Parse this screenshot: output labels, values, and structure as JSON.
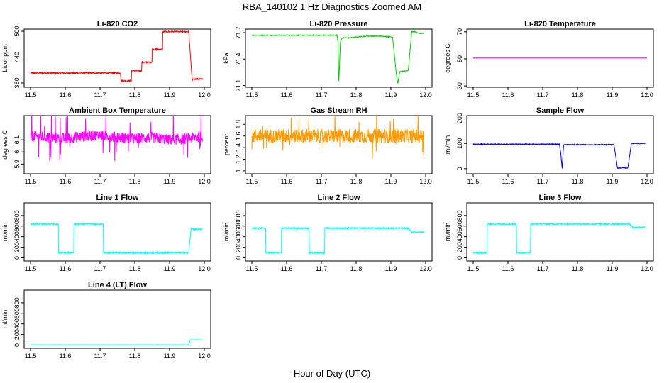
{
  "figure": {
    "title": "RBA_140102  1 Hz Diagnostics Zoomed AM",
    "xlabel": "Hour of Day (UTC)"
  },
  "chart_data": [
    {
      "type": "line",
      "title": "Li-820 CO2",
      "ylabel": "Licor ppm",
      "color": "#ff0000",
      "xlim": [
        11.5,
        12.0
      ],
      "ylim": [
        370,
        505
      ],
      "xticks": [
        11.5,
        11.6,
        11.7,
        11.8,
        11.9,
        12.0
      ],
      "yticks": [
        380,
        440,
        500
      ],
      "noise": 1.5,
      "spikes": 0,
      "series": [
        {
          "x": [
            11.5,
            11.759,
            11.76,
            11.79,
            11.79,
            11.82,
            11.82,
            11.85,
            11.85,
            11.88,
            11.88,
            11.955,
            11.965,
            11.97,
            11.995
          ],
          "y": [
            403,
            403,
            385,
            385,
            408,
            408,
            428,
            428,
            458,
            458,
            499,
            499,
            387,
            389,
            389
          ]
        }
      ]
    },
    {
      "type": "line",
      "title": "Li-820 Pressure",
      "ylabel": "kPa",
      "color": "#00cc00",
      "xlim": [
        11.5,
        12.0
      ],
      "ylim": [
        71.08,
        71.74
      ],
      "xticks": [
        11.5,
        11.6,
        11.7,
        11.8,
        11.9,
        12.0
      ],
      "yticks": [
        71.1,
        71.4,
        71.7
      ],
      "noise": 0.004,
      "spikes": 0,
      "series": [
        {
          "x": [
            11.5,
            11.745,
            11.748,
            11.75,
            11.755,
            11.76,
            11.78,
            11.8,
            11.83,
            11.87,
            11.905,
            11.915,
            11.92,
            11.925,
            11.93,
            11.95,
            11.96,
            11.97,
            11.98,
            11.995
          ],
          "y": [
            71.67,
            71.67,
            71.6,
            71.12,
            71.6,
            71.64,
            71.64,
            71.65,
            71.66,
            71.66,
            71.65,
            71.25,
            71.12,
            71.25,
            71.26,
            71.27,
            71.71,
            71.71,
            71.69,
            71.69
          ]
        }
      ]
    },
    {
      "type": "line",
      "title": "Li-820 Temperature",
      "ylabel": "degrees C",
      "color": "#ff00ff",
      "xlim": [
        11.5,
        12.0
      ],
      "ylim": [
        29,
        72
      ],
      "xticks": [
        11.5,
        11.6,
        11.7,
        11.8,
        11.9,
        12.0
      ],
      "yticks": [
        30,
        50,
        70
      ],
      "noise": 0,
      "spikes": 0,
      "series": [
        {
          "x": [
            11.5,
            12.0
          ],
          "y": [
            50.6,
            50.6
          ]
        }
      ]
    },
    {
      "type": "line",
      "title": "Ambient Box Temperature",
      "ylabel": "degrees C",
      "color": "#ff00ff",
      "xlim": [
        11.5,
        12.0
      ],
      "ylim": [
        5.82,
        6.3
      ],
      "xticks": [
        11.5,
        11.6,
        11.7,
        11.8,
        11.9,
        12.0
      ],
      "yticks": [
        5.9,
        6.0,
        6.1
      ],
      "noise": 0.045,
      "spikes": 0.22,
      "series": [
        {
          "x": [
            11.5,
            11.55,
            11.6,
            11.65,
            11.7,
            11.75,
            11.8,
            11.85,
            11.9,
            11.95,
            11.995
          ],
          "y": [
            6.13,
            6.12,
            6.11,
            6.13,
            6.14,
            6.12,
            6.11,
            6.12,
            6.1,
            6.11,
            6.13
          ]
        }
      ]
    },
    {
      "type": "line",
      "title": "Gas Stream RH",
      "ylabel": "percent",
      "color": "#ff9900",
      "xlim": [
        11.5,
        12.0
      ],
      "ylim": [
        0.95,
        1.95
      ],
      "xticks": [
        11.5,
        11.6,
        11.7,
        11.8,
        11.9,
        12.0
      ],
      "yticks": [
        1.0,
        1.2,
        1.4,
        1.6,
        1.8
      ],
      "noise": 0.12,
      "spikes": 0.35,
      "series": [
        {
          "x": [
            11.5,
            11.75,
            11.995
          ],
          "y": [
            1.6,
            1.6,
            1.6
          ]
        }
      ]
    },
    {
      "type": "line",
      "title": "Sample Flow",
      "ylabel": "ml/min",
      "color": "#0000ff",
      "xlim": [
        11.5,
        12.0
      ],
      "ylim": [
        -20,
        210
      ],
      "xticks": [
        11.5,
        11.6,
        11.7,
        11.8,
        11.9,
        12.0
      ],
      "yticks": [
        0,
        100,
        200
      ],
      "noise": 1.5,
      "spikes": 0,
      "series": [
        {
          "x": [
            11.5,
            11.748,
            11.752,
            11.756,
            11.76,
            11.905,
            11.915,
            11.945,
            11.955,
            11.995
          ],
          "y": [
            97,
            97,
            60,
            2,
            95,
            95,
            3,
            3,
            100,
            100
          ]
        }
      ]
    },
    {
      "type": "line",
      "title": "Line 1 Flow",
      "ylabel": "ml/min",
      "color": "#00ffff",
      "xlim": [
        11.5,
        12.0
      ],
      "ylim": [
        -60,
        1040
      ],
      "xticks": [
        11.5,
        11.6,
        11.7,
        11.8,
        11.9,
        12.0
      ],
      "yticks": [
        0,
        200,
        400,
        600,
        800
      ],
      "noise": 12,
      "spikes": 0,
      "series": [
        {
          "x": [
            11.5,
            11.58,
            11.58,
            11.625,
            11.625,
            11.71,
            11.71,
            11.955,
            11.962,
            11.97,
            11.995
          ],
          "y": [
            640,
            640,
            95,
            95,
            640,
            640,
            95,
            95,
            560,
            540,
            540
          ]
        }
      ]
    },
    {
      "type": "line",
      "title": "Line 2 Flow",
      "ylabel": "ml/min",
      "color": "#00ffff",
      "xlim": [
        11.5,
        12.0
      ],
      "ylim": [
        -60,
        1040
      ],
      "xticks": [
        11.5,
        11.6,
        11.7,
        11.8,
        11.9,
        12.0
      ],
      "yticks": [
        0,
        200,
        400,
        600,
        800
      ],
      "noise": 12,
      "spikes": 0,
      "series": [
        {
          "x": [
            11.5,
            11.54,
            11.54,
            11.585,
            11.585,
            11.665,
            11.665,
            11.71,
            11.71,
            11.95,
            11.96,
            11.995
          ],
          "y": [
            560,
            560,
            95,
            95,
            560,
            560,
            95,
            95,
            560,
            560,
            480,
            490
          ]
        }
      ]
    },
    {
      "type": "line",
      "title": "Line 3 Flow",
      "ylabel": "ml/min",
      "color": "#00ffff",
      "xlim": [
        11.5,
        12.0
      ],
      "ylim": [
        -60,
        1040
      ],
      "xticks": [
        11.5,
        11.6,
        11.7,
        11.8,
        11.9,
        12.0
      ],
      "yticks": [
        0,
        200,
        400,
        600,
        800
      ],
      "noise": 12,
      "spikes": 0,
      "series": [
        {
          "x": [
            11.5,
            11.54,
            11.54,
            11.625,
            11.625,
            11.665,
            11.665,
            11.95,
            11.96,
            11.995
          ],
          "y": [
            95,
            95,
            640,
            640,
            95,
            95,
            640,
            640,
            570,
            580
          ]
        }
      ]
    },
    {
      "type": "line",
      "title": "Line 4 (LT) Flow",
      "ylabel": "ml/min",
      "color": "#00ffff",
      "xlim": [
        11.5,
        12.0
      ],
      "ylim": [
        -60,
        1040
      ],
      "xticks": [
        11.5,
        11.6,
        11.7,
        11.8,
        11.9,
        12.0
      ],
      "yticks": [
        0,
        200,
        400,
        600,
        800
      ],
      "noise": 3,
      "spikes": 0,
      "series": [
        {
          "x": [
            11.5,
            11.955,
            11.96,
            11.995
          ],
          "y": [
            5,
            5,
            100,
            100
          ]
        }
      ]
    }
  ]
}
